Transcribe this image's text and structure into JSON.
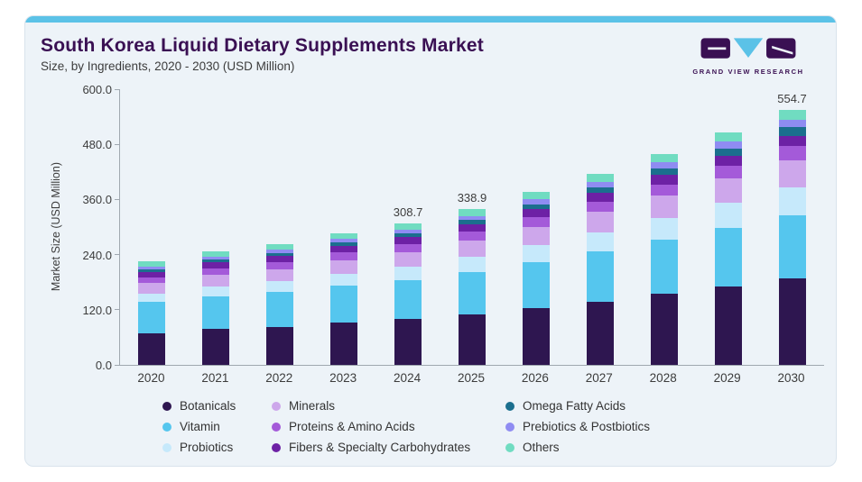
{
  "header": {
    "title": "South Korea Liquid Dietary Supplements Market",
    "subtitle": "Size, by Ingredients, 2020 - 2030 (USD Million)",
    "title_color": "#3a1053"
  },
  "logo": {
    "text": "GRAND VIEW RESEARCH",
    "dark_color": "#3a1053",
    "blue_color": "#5bc2e7"
  },
  "card": {
    "background": "#edf3f8",
    "accent_color": "#5bc2e7"
  },
  "chart_data": {
    "type": "bar",
    "stacked": true,
    "title": "South Korea Liquid Dietary Supplements Market Size, by Ingredients, 2020 - 2030 (USD Million)",
    "xlabel": "",
    "ylabel": "Market Size (USD Million)",
    "ylim": [
      0,
      600
    ],
    "yticks": [
      0,
      120,
      240,
      360,
      480,
      600
    ],
    "ytick_labels": [
      "0.0",
      "120.0",
      "240.0",
      "360.0",
      "480.0",
      "600.0"
    ],
    "grid": false,
    "legend_position": "bottom",
    "categories": [
      "2020",
      "2021",
      "2022",
      "2023",
      "2024",
      "2025",
      "2026",
      "2027",
      "2028",
      "2029",
      "2030"
    ],
    "series": [
      {
        "name": "Botanicals",
        "color": "#2e1650",
        "values": [
          69.6,
          77.5,
          83.2,
          91.7,
          99.8,
          110.5,
          123.8,
          138.2,
          154.0,
          171.2,
          189.2
        ]
      },
      {
        "name": "Vitamin",
        "color": "#55c6ee",
        "values": [
          66.8,
          72.4,
          75.5,
          80.8,
          85.3,
          92.0,
          100.2,
          108.8,
          117.7,
          127.2,
          136.7
        ]
      },
      {
        "name": "Probiotics",
        "color": "#c6e9fb",
        "values": [
          18.4,
          20.9,
          22.8,
          25.7,
          28.5,
          32.3,
          36.9,
          42.1,
          47.9,
          54.3,
          61.3
        ]
      },
      {
        "name": "Minerals",
        "color": "#cda7eb",
        "values": [
          22.9,
          25.4,
          27.1,
          29.7,
          32.1,
          35.4,
          39.4,
          43.7,
          48.4,
          53.5,
          58.8
        ]
      },
      {
        "name": "Proteins & Amino Acids",
        "color": "#a45ad9",
        "values": [
          13.2,
          14.4,
          15.1,
          16.5,
          17.5,
          19.1,
          21.0,
          23.1,
          25.1,
          27.5,
          29.8
        ]
      },
      {
        "name": "Fibers & Specialty Carbohydrates",
        "color": "#6d21a5",
        "values": [
          11.8,
          12.7,
          13.2,
          14.1,
          14.8,
          16.0,
          17.3,
          18.7,
          20.2,
          21.8,
          23.3
        ]
      },
      {
        "name": "Omega Fatty Acids",
        "color": "#1b6f8e",
        "values": [
          5.9,
          6.6,
          7.1,
          8.0,
          8.8,
          9.8,
          11.1,
          12.5,
          14.1,
          15.9,
          17.7
        ]
      },
      {
        "name": "Prebiotics & Postbiotics",
        "color": "#8f8cf2",
        "values": [
          5.3,
          6.0,
          6.5,
          7.3,
          8.1,
          9.1,
          10.4,
          11.8,
          13.4,
          15.2,
          17.1
        ]
      },
      {
        "name": "Others",
        "color": "#70dcc1",
        "values": [
          11.2,
          12.0,
          12.4,
          13.1,
          13.8,
          14.7,
          15.9,
          17.0,
          18.3,
          19.6,
          20.8
        ]
      }
    ],
    "bar_labels": {
      "2024": "308.7",
      "2025": "338.9",
      "2030": "554.7"
    }
  }
}
